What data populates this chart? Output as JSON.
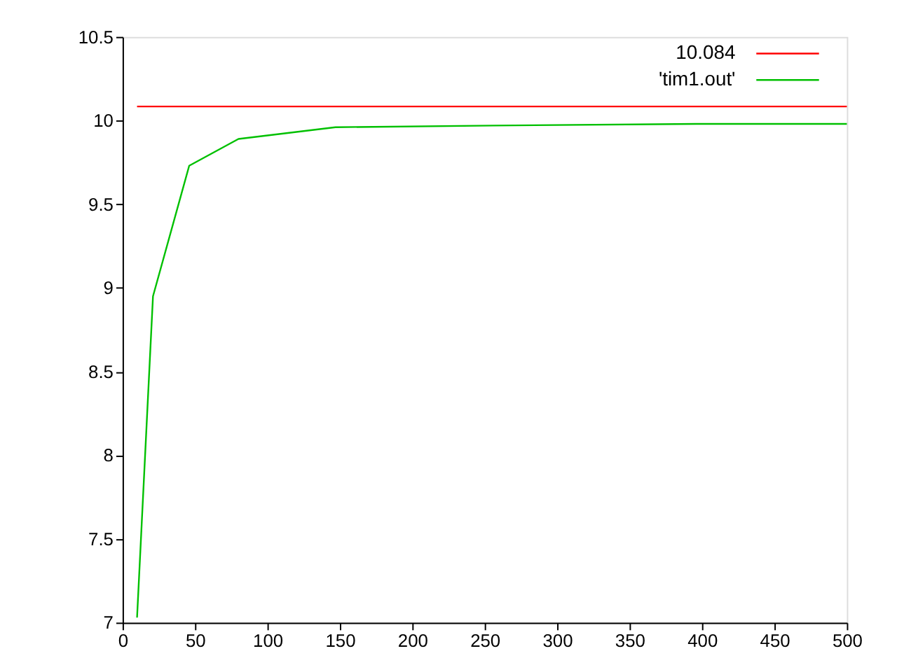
{
  "chart_data": {
    "type": "line",
    "xlim": [
      0,
      500
    ],
    "ylim": [
      7,
      10.5
    ],
    "xticks": [
      0,
      50,
      100,
      150,
      200,
      250,
      300,
      350,
      400,
      450,
      500
    ],
    "yticks": [
      7,
      7.5,
      8,
      8.5,
      9,
      9.5,
      10,
      10.5
    ],
    "grid": false,
    "legend": "top right",
    "marker": "none",
    "line_style": "solid",
    "series": [
      {
        "name": "10.084",
        "color": "#ff0000",
        "x": [
          10,
          500
        ],
        "values": [
          10.084,
          10.084
        ]
      },
      {
        "name": "'tim1.out'",
        "color": "#00c000",
        "x": [
          10,
          21,
          46,
          80,
          147,
          256,
          396,
          500
        ],
        "values": [
          7.03,
          8.95,
          9.73,
          9.89,
          9.96,
          9.97,
          9.98,
          9.98
        ]
      }
    ]
  }
}
